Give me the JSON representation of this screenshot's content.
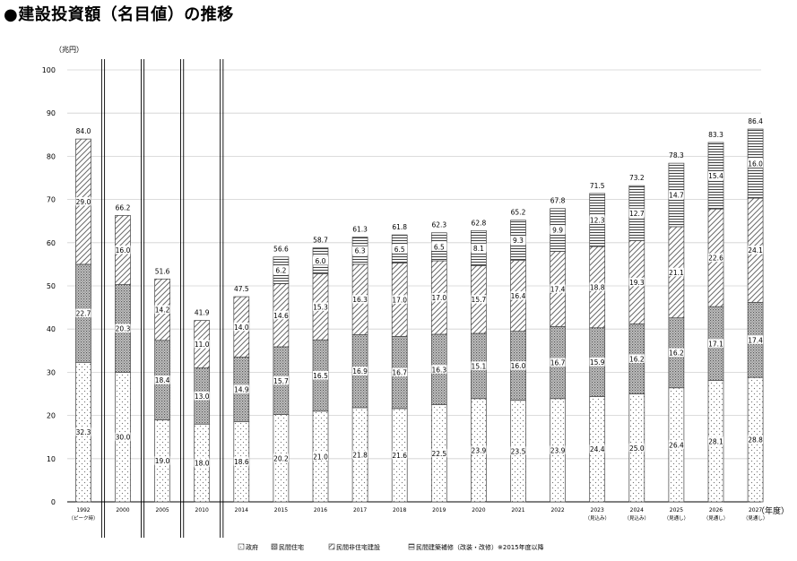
{
  "title": "●建設投資額（名目値）の推移",
  "chart_data": {
    "type": "bar",
    "stacked": true,
    "title": "●建設投資額（名目値）の推移",
    "ylabel": "（兆円）",
    "xlabel": "（年度）",
    "ylim": [
      0,
      100
    ],
    "yticks": [
      0,
      10,
      20,
      30,
      40,
      50,
      60,
      70,
      80,
      90,
      100
    ],
    "grid": true,
    "legend_position": "bottom",
    "categories": [
      "1992",
      "2000",
      "2005",
      "2010",
      "2014",
      "2015",
      "2016",
      "2017",
      "2018",
      "2019",
      "2020",
      "2021",
      "2022",
      "2023",
      "2024",
      "2025",
      "2026",
      "2027"
    ],
    "category_sublabels": [
      "（ピーク時）",
      "",
      "",
      "",
      "",
      "",
      "",
      "",
      "",
      "",
      "",
      "",
      "",
      "（見込み）",
      "（見込み）",
      "（見通し）",
      "（見通し）",
      "（見通し）"
    ],
    "series": [
      {
        "name": "政府",
        "values": [
          32.3,
          30.0,
          19.0,
          18.0,
          18.6,
          20.2,
          21.0,
          21.8,
          21.6,
          22.5,
          23.9,
          23.5,
          23.9,
          24.4,
          25.0,
          26.4,
          28.1,
          28.8
        ]
      },
      {
        "name": "民間住宅",
        "values": [
          22.7,
          20.3,
          18.4,
          13.0,
          14.9,
          15.7,
          16.5,
          16.9,
          16.7,
          16.3,
          15.1,
          16.0,
          16.7,
          15.9,
          16.2,
          16.2,
          17.1,
          17.4
        ]
      },
      {
        "name": "民間非住宅建設",
        "values": [
          29.0,
          16.0,
          14.2,
          11.0,
          14.0,
          14.6,
          15.3,
          16.3,
          17.0,
          17.0,
          15.7,
          16.4,
          17.4,
          18.8,
          19.3,
          21.1,
          22.6,
          24.1
        ]
      },
      {
        "name": "民間建築補修（改装・改修）※2015年度以降",
        "values": [
          null,
          null,
          null,
          null,
          null,
          6.2,
          6.0,
          6.3,
          6.5,
          6.5,
          8.1,
          9.3,
          9.9,
          12.3,
          12.7,
          14.7,
          15.4,
          16.0
        ]
      }
    ],
    "totals": [
      84.0,
      66.2,
      51.6,
      41.9,
      47.5,
      56.6,
      58.7,
      61.3,
      61.8,
      62.3,
      62.8,
      65.2,
      67.8,
      71.5,
      73.2,
      78.3,
      83.3,
      86.4
    ],
    "separators_after": [
      "1992",
      "2000",
      "2005",
      "2010"
    ]
  }
}
